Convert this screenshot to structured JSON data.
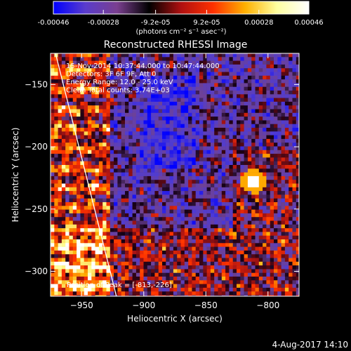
{
  "chart_data": {
    "type": "heatmap",
    "title": "Reconstructed RHESSI Image",
    "xlabel": "Heliocentric X (arcsec)",
    "ylabel": "Heliocentric Y (arcsec)",
    "xlim": [
      -975,
      -775
    ],
    "ylim": [
      -320,
      -125
    ],
    "x_ticks": [
      -950,
      -900,
      -850,
      -800
    ],
    "y_ticks": [
      -300,
      -250,
      -200,
      -150
    ],
    "colorbar": {
      "range": [
        -0.00046,
        0.00046
      ],
      "ticks": [
        -0.00046,
        -0.00028,
        -9.2e-05,
        9.2e-05,
        0.00028,
        0.00046
      ],
      "tick_labels": [
        "-0.00046",
        "-0.00028",
        "-9.2e-05",
        "9.2e-05",
        "0.00028",
        "0.00046"
      ],
      "label": "(photons cm⁻² s⁻¹ asec⁻²)",
      "stops": [
        "#0000ff",
        "#5a3ccc",
        "#7a3f8f",
        "#000000",
        "#b01010",
        "#ff3000",
        "#ffb000",
        "#ffffa0",
        "#ffffff"
      ]
    },
    "annotations": [
      "15-Nov-2014 10:37:44.000 to 10:47:44.000",
      "Detectors: 3F 6F 9F, Att 0",
      "Energy Range: 12.0 - 25.0 keV",
      "Clean     Total counts: 3.74E+03"
    ],
    "peak_label": "Position of Peak = [-813,-226]",
    "peak_position": [
      -813,
      -226
    ],
    "limb_line": [
      [
        -971,
        -125
      ],
      [
        -922,
        -320
      ]
    ]
  },
  "footer": {
    "date": "4-Aug-2017 14:10"
  }
}
